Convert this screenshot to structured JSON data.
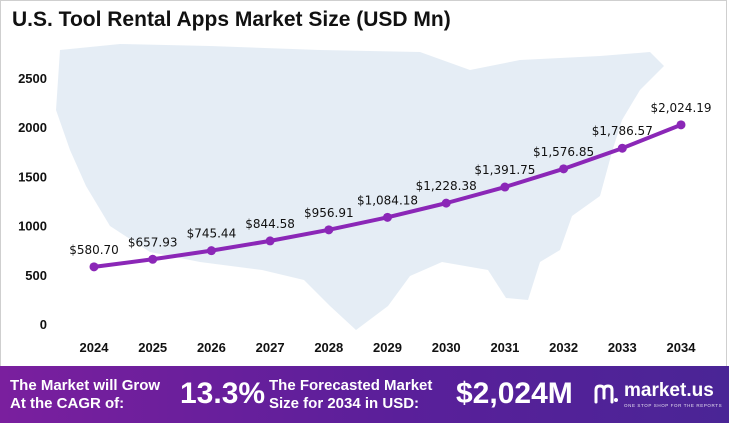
{
  "title": "U.S. Tool Rental Apps Market Size (USD Mn)",
  "colors": {
    "line": "#8b27b7",
    "marker": "#8b27b7",
    "map": "#dfe8f3",
    "footer_start": "#7a1f9e",
    "footer_end": "#4a2596"
  },
  "chart_data": {
    "type": "line",
    "title": "U.S. Tool Rental Apps Market Size (USD Mn)",
    "categories": [
      "2024",
      "2025",
      "2026",
      "2027",
      "2028",
      "2029",
      "2030",
      "2031",
      "2032",
      "2033",
      "2034"
    ],
    "values": [
      580.7,
      657.93,
      745.44,
      844.58,
      956.91,
      1084.18,
      1228.38,
      1391.75,
      1576.85,
      1786.57,
      2024.19
    ],
    "data_labels": [
      "$580.70",
      "$657.93",
      "$745.44",
      "$844.58",
      "$956.91",
      "$1,084.18",
      "$1,228.38",
      "$1,391.75",
      "$1,576.85",
      "$1,786.57",
      "$2,024.19"
    ],
    "y_ticks": [
      "0",
      "500",
      "1000",
      "1500",
      "2000",
      "2500"
    ],
    "ylim": [
      0,
      2500
    ],
    "grid": false,
    "legend": "none"
  },
  "footer": {
    "cagr_text_line1": "The Market will Grow",
    "cagr_text_line2": "At the CAGR of:",
    "cagr_value": "13.3%",
    "forecast_text_line1": "The Forecasted Market",
    "forecast_text_line2": "Size for 2034 in USD:",
    "forecast_value": "$2,024M",
    "brand_name": "market.us",
    "brand_tagline": "ONE STOP SHOP FOR THE REPORTS",
    "brand_icon": "market-us-logo-icon"
  }
}
